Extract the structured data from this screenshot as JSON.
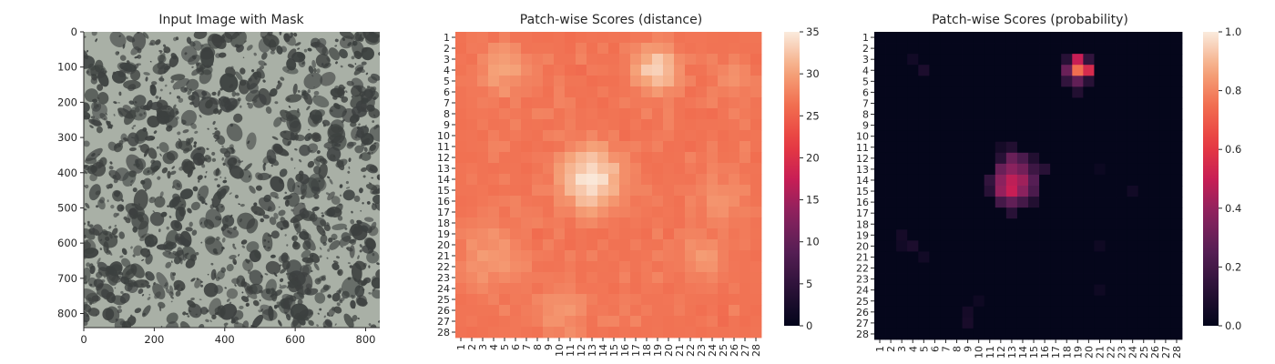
{
  "chart_data": [
    {
      "type": "image",
      "title": "Input Image with Mask",
      "xlim": [
        0,
        840
      ],
      "ylim": [
        840,
        0
      ],
      "x_ticks": [
        0,
        200,
        400,
        600,
        800
      ],
      "y_ticks": [
        0,
        100,
        200,
        300,
        400,
        500,
        600,
        700,
        800
      ],
      "x_tick_labels": [
        "0",
        "200",
        "400",
        "600",
        "800"
      ],
      "y_tick_labels": [
        "0",
        "100",
        "200",
        "300",
        "400",
        "500",
        "600",
        "700",
        "800"
      ],
      "background_color": "#a9b0a6",
      "blob_color": "#3c403f"
    },
    {
      "type": "heatmap",
      "title": "Patch-wise Scores (distance)",
      "grid_size": 28,
      "row_labels": [
        "1",
        "2",
        "3",
        "4",
        "5",
        "6",
        "7",
        "8",
        "9",
        "10",
        "11",
        "12",
        "13",
        "14",
        "15",
        "16",
        "17",
        "18",
        "19",
        "20",
        "21",
        "22",
        "23",
        "24",
        "25",
        "26",
        "27",
        "28"
      ],
      "col_labels": [
        "1",
        "2",
        "3",
        "4",
        "5",
        "6",
        "7",
        "8",
        "9",
        "10",
        "11",
        "12",
        "13",
        "14",
        "15",
        "16",
        "17",
        "18",
        "19",
        "20",
        "21",
        "22",
        "23",
        "24",
        "25",
        "26",
        "27",
        "28"
      ],
      "vmin": 0,
      "vmax": 35,
      "colorbar_ticks": [
        0,
        5,
        10,
        15,
        20,
        25,
        30,
        35
      ],
      "colorbar_tick_labels": [
        "0",
        "5",
        "10",
        "15",
        "20",
        "25",
        "30",
        "35"
      ],
      "base_value": 26,
      "border_value": 22,
      "hotspots": [
        {
          "row": 14,
          "col": 13,
          "peak": 34.5,
          "spread": 2.2
        },
        {
          "row": 4,
          "col": 19,
          "peak": 33.5,
          "spread": 1.6
        },
        {
          "row": 4,
          "col": 5,
          "peak": 30,
          "spread": 2.0
        },
        {
          "row": 21,
          "col": 4,
          "peak": 29.5,
          "spread": 2.5
        },
        {
          "row": 26,
          "col": 10,
          "peak": 29.5,
          "spread": 2.0
        },
        {
          "row": 16,
          "col": 25,
          "peak": 29,
          "spread": 2.0
        },
        {
          "row": 5,
          "col": 26,
          "peak": 29,
          "spread": 1.5
        },
        {
          "row": 21,
          "col": 23,
          "peak": 29,
          "spread": 2.0
        }
      ],
      "colormap": "rocket"
    },
    {
      "type": "heatmap",
      "title": "Patch-wise Scores (probability)",
      "grid_size": 28,
      "row_labels": [
        "1",
        "2",
        "3",
        "4",
        "5",
        "6",
        "7",
        "8",
        "9",
        "10",
        "11",
        "12",
        "13",
        "14",
        "15",
        "16",
        "17",
        "18",
        "19",
        "20",
        "21",
        "22",
        "23",
        "24",
        "25",
        "26",
        "27",
        "28"
      ],
      "col_labels": [
        "1",
        "2",
        "3",
        "4",
        "5",
        "6",
        "7",
        "8",
        "9",
        "10",
        "11",
        "12",
        "13",
        "14",
        "15",
        "16",
        "17",
        "18",
        "19",
        "20",
        "21",
        "22",
        "23",
        "24",
        "25",
        "26",
        "27",
        "28"
      ],
      "vmin": 0.0,
      "vmax": 1.0,
      "colorbar_ticks": [
        0.0,
        0.2,
        0.4,
        0.6,
        0.8,
        1.0
      ],
      "colorbar_tick_labels": [
        "0.0",
        "0.2",
        "0.4",
        "0.6",
        "0.8",
        "1.0"
      ],
      "base_value": 0.005,
      "cells": [
        {
          "row": 3,
          "col": 19,
          "value": 0.5
        },
        {
          "row": 4,
          "col": 19,
          "value": 0.75
        },
        {
          "row": 4,
          "col": 20,
          "value": 0.55
        },
        {
          "row": 4,
          "col": 18,
          "value": 0.3
        },
        {
          "row": 3,
          "col": 18,
          "value": 0.12
        },
        {
          "row": 3,
          "col": 20,
          "value": 0.15
        },
        {
          "row": 5,
          "col": 19,
          "value": 0.28
        },
        {
          "row": 5,
          "col": 18,
          "value": 0.15
        },
        {
          "row": 5,
          "col": 20,
          "value": 0.12
        },
        {
          "row": 6,
          "col": 19,
          "value": 0.1
        },
        {
          "row": 4,
          "col": 5,
          "value": 0.08
        },
        {
          "row": 3,
          "col": 4,
          "value": 0.05
        },
        {
          "row": 12,
          "col": 13,
          "value": 0.3
        },
        {
          "row": 13,
          "col": 13,
          "value": 0.38
        },
        {
          "row": 14,
          "col": 13,
          "value": 0.48
        },
        {
          "row": 15,
          "col": 13,
          "value": 0.5
        },
        {
          "row": 14,
          "col": 12,
          "value": 0.38
        },
        {
          "row": 15,
          "col": 12,
          "value": 0.4
        },
        {
          "row": 14,
          "col": 14,
          "value": 0.42
        },
        {
          "row": 15,
          "col": 14,
          "value": 0.38
        },
        {
          "row": 13,
          "col": 12,
          "value": 0.3
        },
        {
          "row": 13,
          "col": 14,
          "value": 0.32
        },
        {
          "row": 16,
          "col": 13,
          "value": 0.28
        },
        {
          "row": 16,
          "col": 12,
          "value": 0.2
        },
        {
          "row": 16,
          "col": 14,
          "value": 0.2
        },
        {
          "row": 14,
          "col": 15,
          "value": 0.25
        },
        {
          "row": 15,
          "col": 15,
          "value": 0.22
        },
        {
          "row": 12,
          "col": 14,
          "value": 0.22
        },
        {
          "row": 12,
          "col": 12,
          "value": 0.12
        },
        {
          "row": 11,
          "col": 13,
          "value": 0.1
        },
        {
          "row": 11,
          "col": 12,
          "value": 0.06
        },
        {
          "row": 14,
          "col": 11,
          "value": 0.15
        },
        {
          "row": 15,
          "col": 11,
          "value": 0.12
        },
        {
          "row": 13,
          "col": 15,
          "value": 0.18
        },
        {
          "row": 13,
          "col": 16,
          "value": 0.12
        },
        {
          "row": 12,
          "col": 15,
          "value": 0.1
        },
        {
          "row": 17,
          "col": 13,
          "value": 0.12
        },
        {
          "row": 16,
          "col": 15,
          "value": 0.1
        },
        {
          "row": 20,
          "col": 4,
          "value": 0.08
        },
        {
          "row": 19,
          "col": 3,
          "value": 0.06
        },
        {
          "row": 20,
          "col": 3,
          "value": 0.05
        },
        {
          "row": 21,
          "col": 5,
          "value": 0.05
        },
        {
          "row": 26,
          "col": 9,
          "value": 0.06
        },
        {
          "row": 27,
          "col": 9,
          "value": 0.07
        },
        {
          "row": 25,
          "col": 10,
          "value": 0.04
        },
        {
          "row": 15,
          "col": 24,
          "value": 0.05
        },
        {
          "row": 20,
          "col": 21,
          "value": 0.04
        },
        {
          "row": 13,
          "col": 21,
          "value": 0.03
        },
        {
          "row": 24,
          "col": 21,
          "value": 0.04
        }
      ],
      "colormap": "rocket"
    }
  ]
}
